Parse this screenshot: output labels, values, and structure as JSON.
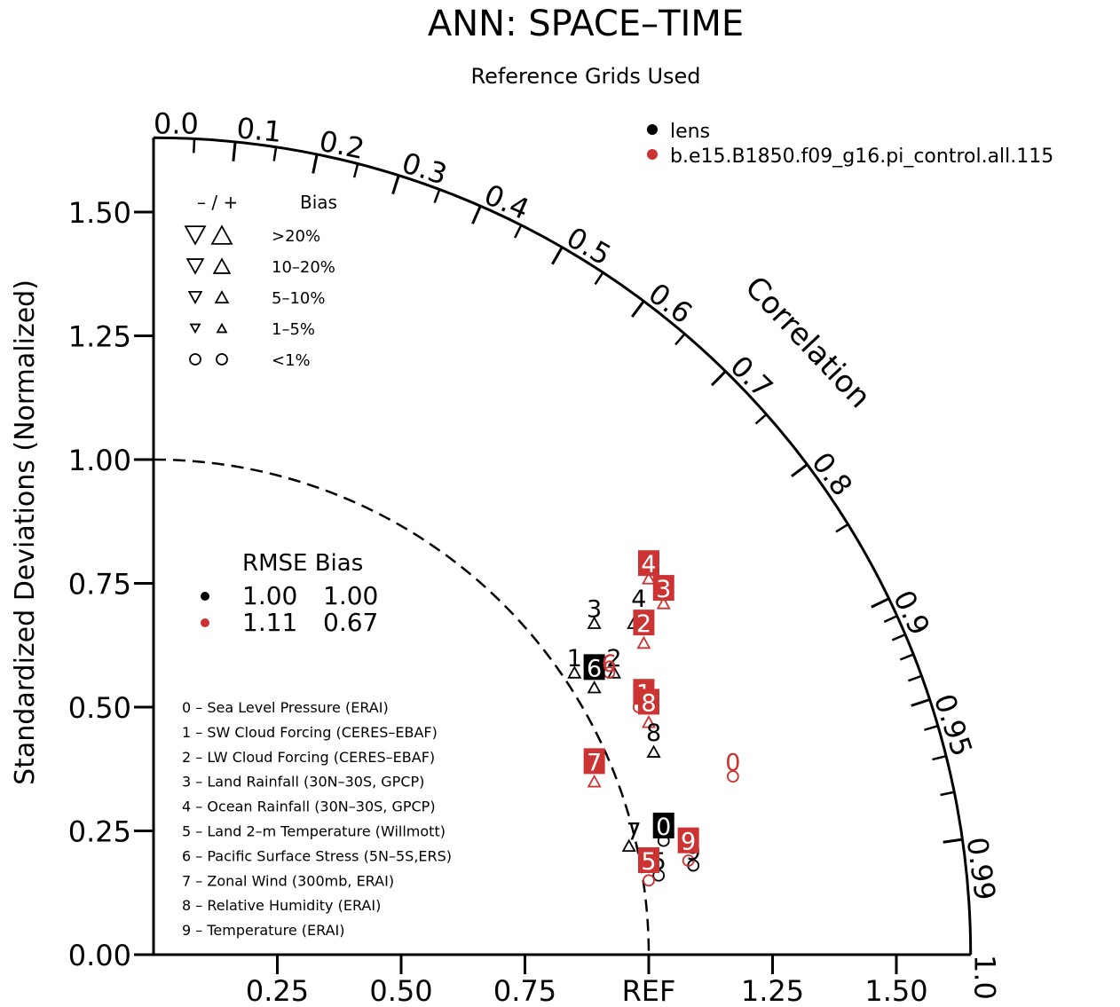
{
  "chart_data": {
    "type": "scatter",
    "subtype": "taylor-diagram",
    "title": "ANN: SPACE–TIME",
    "subtitle": "Reference Grids Used",
    "ylabel": "Standardized Deviations (Normalized)",
    "correlation_label": "Correlation",
    "ref_label": "REF",
    "xlim": [
      0,
      1.65
    ],
    "ylim": [
      0,
      1.65
    ],
    "y_ticks": [
      "0.00",
      "0.25",
      "0.50",
      "0.75",
      "1.00",
      "1.25",
      "1.50"
    ],
    "x_ticks": [
      "0.25",
      "0.50",
      "0.75",
      "REF",
      "1.25",
      "1.50"
    ],
    "correlation_ticks": [
      "0.0",
      "0.1",
      "0.2",
      "0.3",
      "0.4",
      "0.5",
      "0.6",
      "0.7",
      "0.8",
      "0.9",
      "0.95",
      "0.99",
      "1.0"
    ],
    "grid": false,
    "legend_position": "top-right",
    "legend": [
      {
        "name": "lens",
        "color": "#000000"
      },
      {
        "name": "b.e15.B1850.f09_g16.pi_control.all.115",
        "color": "#cc3333"
      }
    ],
    "bias_legend": {
      "header": "– / +",
      "header_bias": "Bias",
      "rows": [
        {
          "label": ">20%",
          "shape": "triangle",
          "size": 1.0
        },
        {
          "label": "10–20%",
          "shape": "triangle",
          "size": 0.8
        },
        {
          "label": "5–10%",
          "shape": "triangle",
          "size": 0.62
        },
        {
          "label": "1–5%",
          "shape": "triangle",
          "size": 0.45
        },
        {
          "label": "<1%",
          "shape": "circle",
          "size": 0.55
        }
      ]
    },
    "rmse_table": {
      "header": "RMSE Bias",
      "rows": [
        {
          "color": "#000000",
          "rmse": "1.00",
          "bias": "1.00"
        },
        {
          "color": "#cc3333",
          "rmse": "1.11",
          "bias": "0.67"
        }
      ]
    },
    "variables": [
      "0 – Sea Level Pressure (ERAI)",
      "1 – SW Cloud Forcing (CERES–EBAF)",
      "2 – LW Cloud Forcing (CERES–EBAF)",
      "3 – Land Rainfall (30N–30S, GPCP)",
      "4 – Ocean Rainfall (30N–30S, GPCP)",
      "5 – Land 2–m Temperature (Willmott)",
      "6 – Pacific Surface Stress (5N–5S,ERS)",
      "7 – Zonal Wind (300mb, ERAI)",
      "8 – Relative Humidity (ERAI)",
      "9 – Temperature (ERAI)"
    ],
    "series": [
      {
        "name": "lens",
        "color": "#000000",
        "points": [
          {
            "label": "0",
            "x": 1.03,
            "y": 0.26,
            "boxed": true
          },
          {
            "label": "1",
            "x": 0.85,
            "y": 0.6,
            "boxed": false
          },
          {
            "label": "2",
            "x": 0.93,
            "y": 0.6,
            "boxed": false
          },
          {
            "label": "3",
            "x": 0.89,
            "y": 0.7,
            "boxed": false
          },
          {
            "label": "4",
            "x": 0.98,
            "y": 0.72,
            "boxed": false
          },
          {
            "label": "5",
            "x": 1.02,
            "y": 0.19,
            "boxed": false
          },
          {
            "label": "6",
            "x": 0.89,
            "y": 0.58,
            "boxed": true
          },
          {
            "label": "7",
            "x": 0.97,
            "y": 0.25,
            "boxed": false
          },
          {
            "label": "8",
            "x": 1.01,
            "y": 0.45,
            "boxed": false
          },
          {
            "label": "9",
            "x": 1.09,
            "y": 0.21,
            "boxed": false
          }
        ]
      },
      {
        "name": "b.e15.B1850.f09_g16.pi_control.all.115",
        "color": "#cc3333",
        "points": [
          {
            "label": "0",
            "x": 1.17,
            "y": 0.39,
            "boxed": false
          },
          {
            "label": "1",
            "x": 0.99,
            "y": 0.53,
            "boxed": true
          },
          {
            "label": "2",
            "x": 0.99,
            "y": 0.67,
            "boxed": true
          },
          {
            "label": "3",
            "x": 1.03,
            "y": 0.74,
            "boxed": true
          },
          {
            "label": "4",
            "x": 1.0,
            "y": 0.79,
            "boxed": true
          },
          {
            "label": "5",
            "x": 1.0,
            "y": 0.19,
            "boxed": true
          },
          {
            "label": "6",
            "x": 0.92,
            "y": 0.59,
            "boxed": false
          },
          {
            "label": "7",
            "x": 0.89,
            "y": 0.39,
            "boxed": true
          },
          {
            "label": "8",
            "x": 1.0,
            "y": 0.51,
            "boxed": true
          },
          {
            "label": "9",
            "x": 1.08,
            "y": 0.23,
            "boxed": true
          }
        ]
      }
    ],
    "markers": [
      {
        "color": "#000000",
        "shape": "circle",
        "x": 1.03,
        "y": 0.23
      },
      {
        "color": "#000000",
        "shape": "triangle",
        "x": 0.85,
        "y": 0.57
      },
      {
        "color": "#000000",
        "shape": "triangle",
        "x": 0.93,
        "y": 0.57
      },
      {
        "color": "#000000",
        "shape": "triangle",
        "x": 0.89,
        "y": 0.67
      },
      {
        "color": "#000000",
        "shape": "triangle",
        "x": 0.89,
        "y": 0.54
      },
      {
        "color": "#000000",
        "shape": "triangle",
        "x": 0.97,
        "y": 0.67
      },
      {
        "color": "#000000",
        "shape": "circle",
        "x": 1.02,
        "y": 0.16
      },
      {
        "color": "#000000",
        "shape": "triangle",
        "x": 0.96,
        "y": 0.22
      },
      {
        "color": "#000000",
        "shape": "triangle",
        "x": 1.01,
        "y": 0.41
      },
      {
        "color": "#000000",
        "shape": "circle",
        "x": 1.09,
        "y": 0.18
      },
      {
        "color": "#cc3333",
        "shape": "circle",
        "x": 1.17,
        "y": 0.36
      },
      {
        "color": "#cc3333",
        "shape": "circle",
        "x": 0.98,
        "y": 0.5
      },
      {
        "color": "#cc3333",
        "shape": "triangle",
        "x": 0.99,
        "y": 0.63
      },
      {
        "color": "#cc3333",
        "shape": "triangle",
        "x": 1.03,
        "y": 0.71
      },
      {
        "color": "#cc3333",
        "shape": "triangle",
        "x": 1.0,
        "y": 0.76
      },
      {
        "color": "#cc3333",
        "shape": "circle",
        "x": 1.0,
        "y": 0.15
      },
      {
        "color": "#cc3333",
        "shape": "circle",
        "x": 0.92,
        "y": 0.57
      },
      {
        "color": "#cc3333",
        "shape": "triangle",
        "x": 0.89,
        "y": 0.35
      },
      {
        "color": "#cc3333",
        "shape": "triangle",
        "x": 1.0,
        "y": 0.47
      },
      {
        "color": "#cc3333",
        "shape": "circle",
        "x": 1.08,
        "y": 0.19
      }
    ]
  }
}
